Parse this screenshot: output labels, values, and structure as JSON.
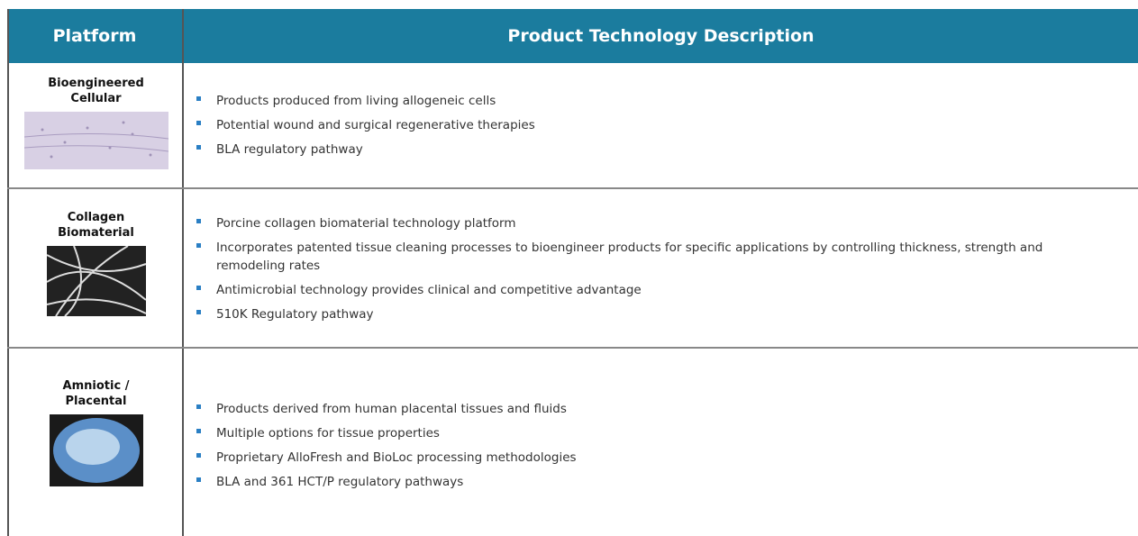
{
  "table": {
    "header": [
      "Platform",
      "Product Technology Description"
    ],
    "rows": [
      {
        "platform": "Bioengineered Cellular",
        "items": [
          "Products produced from living allogeneic cells",
          "Potential wound and surgical regenerative therapies",
          "BLA regulatory pathway"
        ]
      },
      {
        "platform": "Collagen Biomaterial",
        "items": [
          "Porcine collagen biomaterial technology platform",
          "Incorporates patented tissue cleaning processes to bioengineer products for specific applications by controlling thickness, strength and remodeling rates",
          "Antimicrobial technology provides clinical and competitive advantage",
          "510K Regulatory pathway"
        ]
      },
      {
        "platform": "Amniotic / Placental",
        "items": [
          "Products derived from human placental tissues and fluids",
          "Multiple options for tissue properties",
          "Proprietary AlloFresh and BioLoc processing methodologies",
          "BLA and 361 HCT/P regulatory pathways"
        ]
      }
    ]
  }
}
